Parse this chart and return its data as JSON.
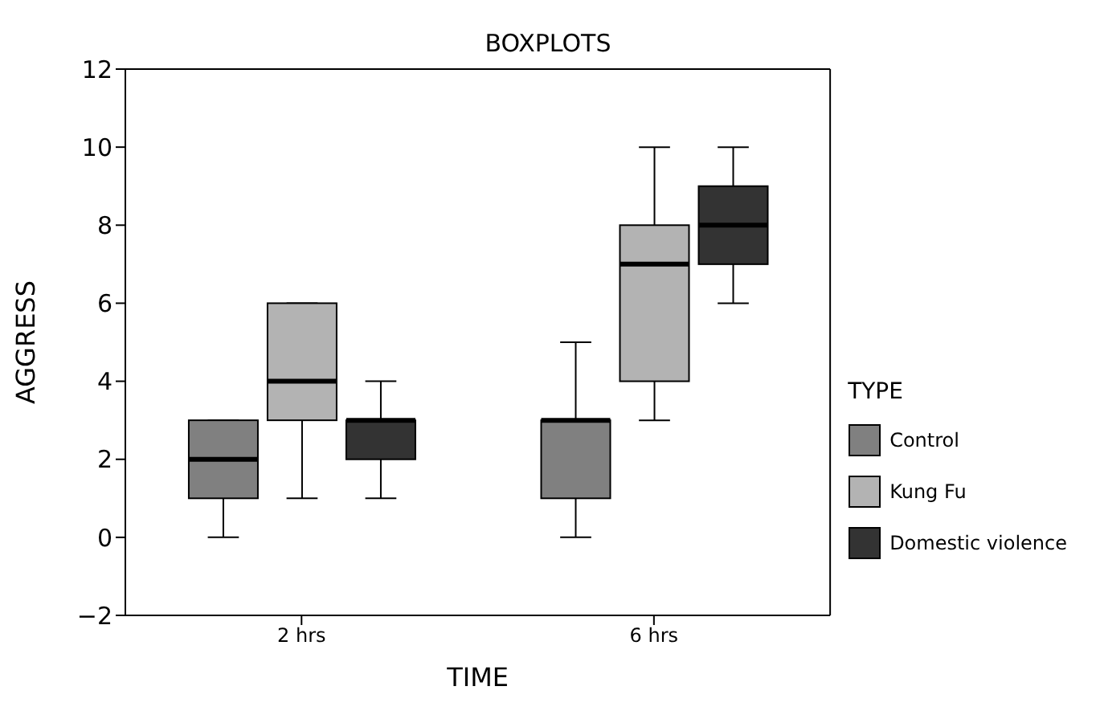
{
  "chart_data": {
    "type": "box",
    "title": "BOXPLOTS",
    "xlabel": "TIME",
    "ylabel": "AGGRESS",
    "legend_title": "TYPE",
    "legend": "right",
    "categories": [
      "2 hrs",
      "6 hrs"
    ],
    "ylim": [
      -2,
      12
    ],
    "yticks": [
      -2,
      0,
      2,
      4,
      6,
      8,
      10,
      12
    ],
    "grid": false,
    "series": [
      {
        "name": "Control",
        "color": "#808080",
        "boxes": [
          {
            "low": 0,
            "q1": 1,
            "median": 2,
            "q3": 3,
            "high": 3
          },
          {
            "low": 0,
            "q1": 1,
            "median": 3,
            "q3": 3,
            "high": 5
          }
        ]
      },
      {
        "name": "Kung Fu",
        "color": "#b3b3b3",
        "boxes": [
          {
            "low": 1,
            "q1": 3,
            "median": 4,
            "q3": 6,
            "high": 6
          },
          {
            "low": 3,
            "q1": 4,
            "median": 7,
            "q3": 8,
            "high": 10
          }
        ]
      },
      {
        "name": "Domestic violence",
        "color": "#333333",
        "boxes": [
          {
            "low": 1,
            "q1": 2,
            "median": 3,
            "q3": 3,
            "high": 4
          },
          {
            "low": 6,
            "q1": 7,
            "median": 8,
            "q3": 9,
            "high": 10
          }
        ]
      }
    ]
  }
}
